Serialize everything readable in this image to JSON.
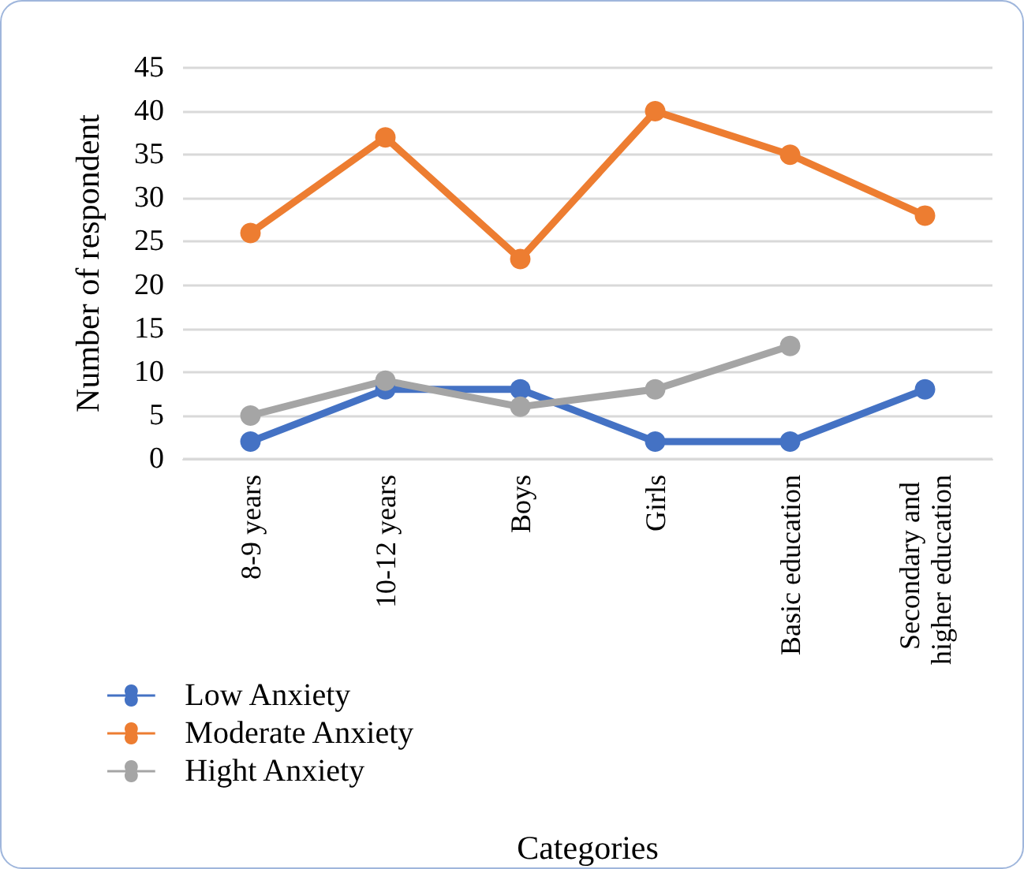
{
  "chart_data": {
    "type": "line",
    "xlabel": "Categories",
    "ylabel": "Number of respondent",
    "categories": [
      "8-9 years",
      "10-12 years",
      "Boys",
      "Girls",
      "Basic education",
      "Secondary and higher education"
    ],
    "series": [
      {
        "name": "Low Anxiety",
        "color": "#4472c4",
        "values": [
          2,
          8,
          8,
          2,
          2,
          8
        ]
      },
      {
        "name": "Moderate Anxiety",
        "color": "#ed7d31",
        "values": [
          26,
          37,
          23,
          40,
          35,
          28
        ]
      },
      {
        "name": "Hight Anxiety",
        "color": "#a5a5a5",
        "values": [
          5,
          9,
          6,
          8,
          13,
          null
        ]
      }
    ],
    "ylim": [
      0,
      45
    ],
    "yticks": [
      0,
      5,
      10,
      15,
      20,
      25,
      30,
      35,
      40,
      45
    ],
    "grid": "y",
    "legend": "bottom left",
    "marker": "circle",
    "line_style": "solid"
  }
}
